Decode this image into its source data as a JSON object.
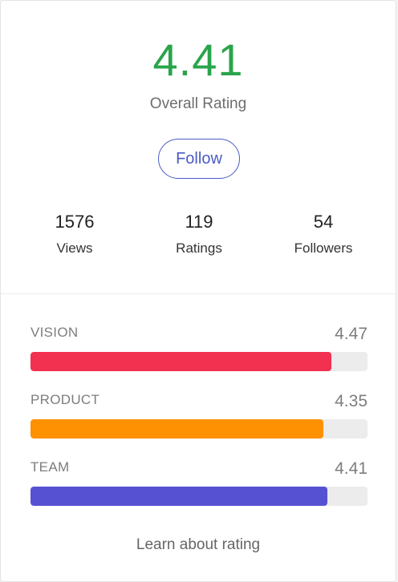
{
  "overall": {
    "rating": "4.41",
    "label": "Overall Rating",
    "rating_color": "#2aa44b"
  },
  "follow_button": {
    "label": "Follow",
    "color": "#4b5bc4"
  },
  "stats": [
    {
      "value": "1576",
      "label": "Views"
    },
    {
      "value": "119",
      "label": "Ratings"
    },
    {
      "value": "54",
      "label": "Followers"
    }
  ],
  "categories": [
    {
      "name": "VISION",
      "score": "4.47",
      "fill": 0.894,
      "color": "#f2304f"
    },
    {
      "name": "PRODUCT",
      "score": "4.35",
      "fill": 0.87,
      "color": "#fd9101"
    },
    {
      "name": "TEAM",
      "score": "4.41",
      "fill": 0.882,
      "color": "#5651d3"
    }
  ],
  "footer": {
    "learn_link": "Learn about rating"
  }
}
